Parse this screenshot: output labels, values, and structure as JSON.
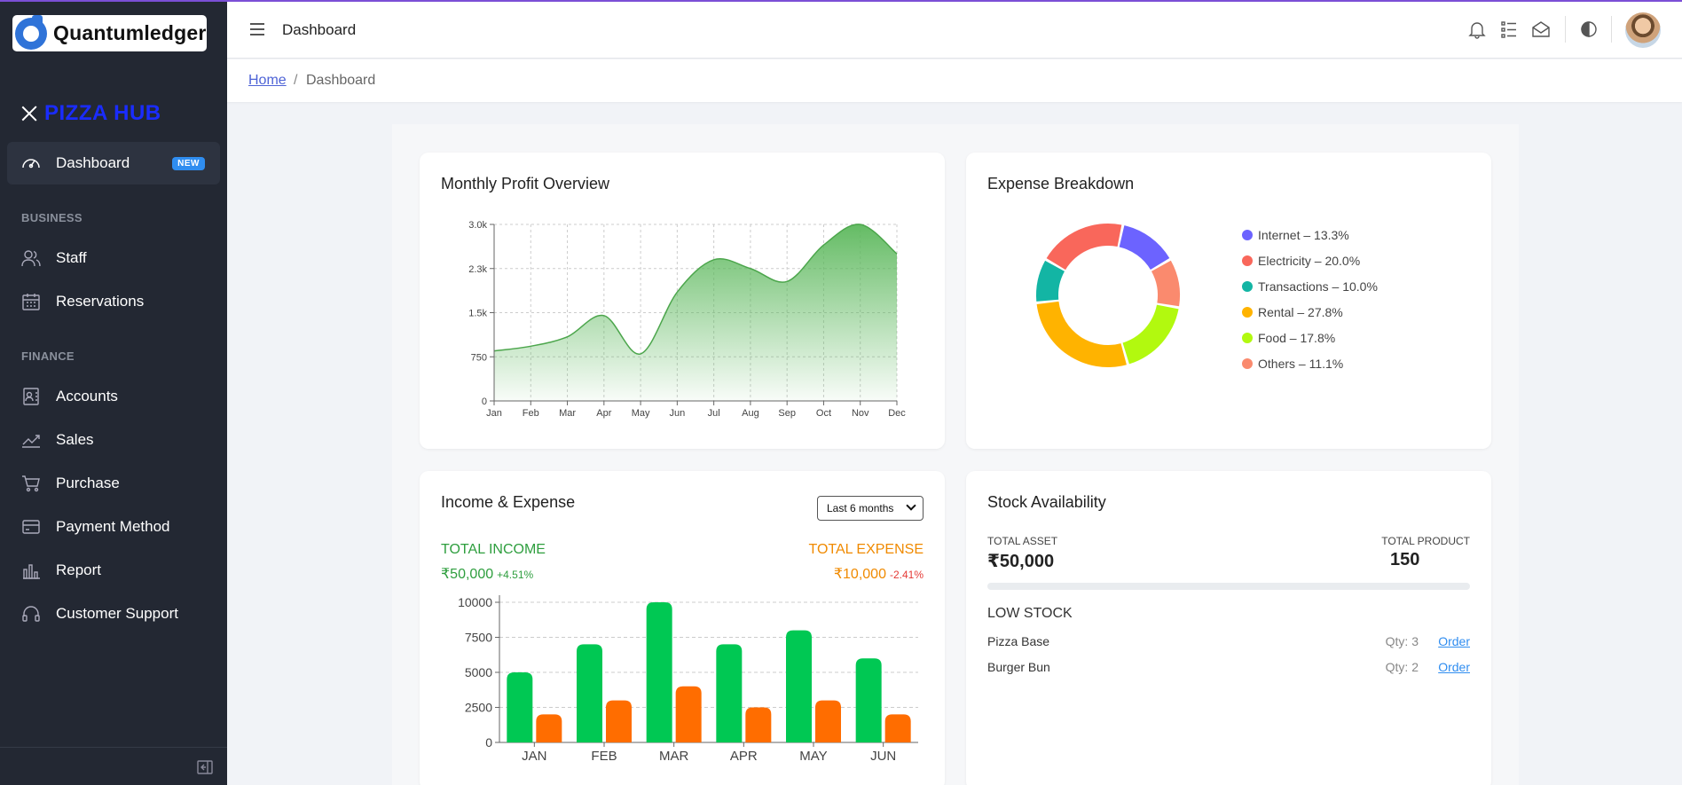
{
  "app": {
    "logo_text": "Quantumledger",
    "brand_name": "PIZZA HUB"
  },
  "sidebar": {
    "dashboard": {
      "label": "Dashboard",
      "badge": "NEW"
    },
    "sections": [
      {
        "label": "BUSINESS",
        "items": [
          {
            "label": "Staff",
            "icon": "users-icon"
          },
          {
            "label": "Reservations",
            "icon": "calendar-icon"
          }
        ]
      },
      {
        "label": "FINANCE",
        "items": [
          {
            "label": "Accounts",
            "icon": "accounts-icon"
          },
          {
            "label": "Sales",
            "icon": "trend-icon"
          },
          {
            "label": "Purchase",
            "icon": "cart-icon"
          },
          {
            "label": "Payment Method",
            "icon": "card-icon"
          },
          {
            "label": "Report",
            "icon": "bar-chart-icon"
          },
          {
            "label": "Customer Support",
            "icon": "headset-icon"
          }
        ]
      }
    ]
  },
  "header": {
    "title": "Dashboard"
  },
  "breadcrumb": {
    "home": "Home",
    "separator": "/",
    "current": "Dashboard"
  },
  "cards": {
    "profit": {
      "title": "Monthly Profit Overview"
    },
    "expense": {
      "title": "Expense Breakdown"
    },
    "income": {
      "title": "Income & Expense",
      "period": "Last 6 months",
      "total_income_label": "TOTAL INCOME",
      "total_income_value": "₹50,000",
      "total_income_change": "+4.51%",
      "total_expense_label": "TOTAL EXPENSE",
      "total_expense_value": "₹10,000",
      "total_expense_change": "-2.41%"
    },
    "stock": {
      "title": "Stock Availability",
      "total_asset_label": "TOTAL ASSET",
      "total_asset_value": "₹50,000",
      "total_product_label": "TOTAL PRODUCT",
      "total_product_value": "150",
      "progress": 0,
      "low_stock_label": "LOW STOCK",
      "items": [
        {
          "name": "Pizza Base",
          "qty": "Qty: 3",
          "action": "Order"
        },
        {
          "name": "Burger Bun",
          "qty": "Qty: 2",
          "action": "Order"
        }
      ]
    }
  },
  "colors": {
    "income": "#00c853",
    "expense": "#ff6d00",
    "profit": "#5cb85c",
    "income_label": "#2e9e3e",
    "expense_label": "#f08a00"
  },
  "chart_data": [
    {
      "type": "area",
      "x": [
        "Jan",
        "Feb",
        "Mar",
        "Apr",
        "May",
        "Jun",
        "Jul",
        "Aug",
        "Sep",
        "Oct",
        "Nov",
        "Dec"
      ],
      "values": [
        850,
        930,
        1090,
        1450,
        800,
        1850,
        2400,
        2250,
        2030,
        2650,
        3000,
        2500
      ],
      "yticks": [
        "0",
        "750",
        "1.5k",
        "2.3k",
        "3.0k"
      ],
      "ylim": [
        0,
        3000
      ],
      "grid": true
    },
    {
      "type": "pie",
      "labels": [
        "Internet – 13.3%",
        "Electricity – 20.0%",
        "Transactions – 10.0%",
        "Rental – 27.8%",
        "Food – 17.8%",
        "Others – 11.1%"
      ],
      "values": [
        13.3,
        20.0,
        10.0,
        27.8,
        17.8,
        11.1
      ],
      "colors": [
        "#6c63ff",
        "#f9675b",
        "#13b5a4",
        "#ffb300",
        "#b2f90f",
        "#fa8a6e"
      ],
      "order_clockwise_from_top": [
        "Internet",
        "Others",
        "Food",
        "Rental",
        "Transactions",
        "Electricity"
      ],
      "legend": "right"
    },
    {
      "type": "bar",
      "categories": [
        "JAN",
        "FEB",
        "MAR",
        "APR",
        "MAY",
        "JUN"
      ],
      "series": [
        {
          "values": [
            5000,
            7000,
            10000,
            7000,
            8000,
            6000
          ]
        },
        {
          "values": [
            2000,
            3000,
            4000,
            2500,
            3000,
            2000
          ]
        }
      ],
      "yticks": [
        "0",
        "2500",
        "5000",
        "7500",
        "10000"
      ],
      "ylim": [
        0,
        10000
      ],
      "grid": true
    }
  ]
}
